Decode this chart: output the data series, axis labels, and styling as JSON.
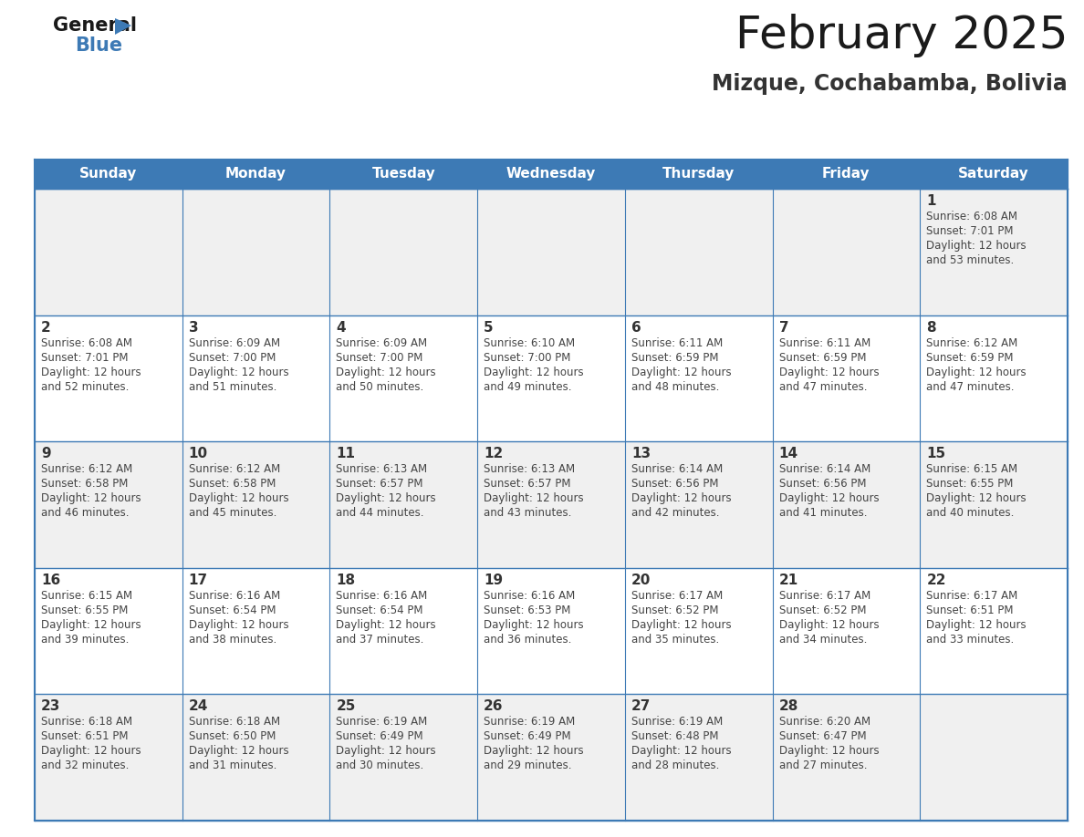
{
  "title": "February 2025",
  "subtitle": "Mizque, Cochabamba, Bolivia",
  "header_bg": "#3d7ab5",
  "header_text": "#ffffff",
  "row_bg_even": "#f0f0f0",
  "row_bg_odd": "#ffffff",
  "border_color": "#3d7ab5",
  "text_color": "#444444",
  "day_num_color": "#333333",
  "day_names": [
    "Sunday",
    "Monday",
    "Tuesday",
    "Wednesday",
    "Thursday",
    "Friday",
    "Saturday"
  ],
  "days": [
    {
      "day": 1,
      "col": 6,
      "row": 0,
      "sunrise": "6:08 AM",
      "sunset": "7:01 PM",
      "daylight": "12 hours and 53 minutes."
    },
    {
      "day": 2,
      "col": 0,
      "row": 1,
      "sunrise": "6:08 AM",
      "sunset": "7:01 PM",
      "daylight": "12 hours and 52 minutes."
    },
    {
      "day": 3,
      "col": 1,
      "row": 1,
      "sunrise": "6:09 AM",
      "sunset": "7:00 PM",
      "daylight": "12 hours and 51 minutes."
    },
    {
      "day": 4,
      "col": 2,
      "row": 1,
      "sunrise": "6:09 AM",
      "sunset": "7:00 PM",
      "daylight": "12 hours and 50 minutes."
    },
    {
      "day": 5,
      "col": 3,
      "row": 1,
      "sunrise": "6:10 AM",
      "sunset": "7:00 PM",
      "daylight": "12 hours and 49 minutes."
    },
    {
      "day": 6,
      "col": 4,
      "row": 1,
      "sunrise": "6:11 AM",
      "sunset": "6:59 PM",
      "daylight": "12 hours and 48 minutes."
    },
    {
      "day": 7,
      "col": 5,
      "row": 1,
      "sunrise": "6:11 AM",
      "sunset": "6:59 PM",
      "daylight": "12 hours and 47 minutes."
    },
    {
      "day": 8,
      "col": 6,
      "row": 1,
      "sunrise": "6:12 AM",
      "sunset": "6:59 PM",
      "daylight": "12 hours and 47 minutes."
    },
    {
      "day": 9,
      "col": 0,
      "row": 2,
      "sunrise": "6:12 AM",
      "sunset": "6:58 PM",
      "daylight": "12 hours and 46 minutes."
    },
    {
      "day": 10,
      "col": 1,
      "row": 2,
      "sunrise": "6:12 AM",
      "sunset": "6:58 PM",
      "daylight": "12 hours and 45 minutes."
    },
    {
      "day": 11,
      "col": 2,
      "row": 2,
      "sunrise": "6:13 AM",
      "sunset": "6:57 PM",
      "daylight": "12 hours and 44 minutes."
    },
    {
      "day": 12,
      "col": 3,
      "row": 2,
      "sunrise": "6:13 AM",
      "sunset": "6:57 PM",
      "daylight": "12 hours and 43 minutes."
    },
    {
      "day": 13,
      "col": 4,
      "row": 2,
      "sunrise": "6:14 AM",
      "sunset": "6:56 PM",
      "daylight": "12 hours and 42 minutes."
    },
    {
      "day": 14,
      "col": 5,
      "row": 2,
      "sunrise": "6:14 AM",
      "sunset": "6:56 PM",
      "daylight": "12 hours and 41 minutes."
    },
    {
      "day": 15,
      "col": 6,
      "row": 2,
      "sunrise": "6:15 AM",
      "sunset": "6:55 PM",
      "daylight": "12 hours and 40 minutes."
    },
    {
      "day": 16,
      "col": 0,
      "row": 3,
      "sunrise": "6:15 AM",
      "sunset": "6:55 PM",
      "daylight": "12 hours and 39 minutes."
    },
    {
      "day": 17,
      "col": 1,
      "row": 3,
      "sunrise": "6:16 AM",
      "sunset": "6:54 PM",
      "daylight": "12 hours and 38 minutes."
    },
    {
      "day": 18,
      "col": 2,
      "row": 3,
      "sunrise": "6:16 AM",
      "sunset": "6:54 PM",
      "daylight": "12 hours and 37 minutes."
    },
    {
      "day": 19,
      "col": 3,
      "row": 3,
      "sunrise": "6:16 AM",
      "sunset": "6:53 PM",
      "daylight": "12 hours and 36 minutes."
    },
    {
      "day": 20,
      "col": 4,
      "row": 3,
      "sunrise": "6:17 AM",
      "sunset": "6:52 PM",
      "daylight": "12 hours and 35 minutes."
    },
    {
      "day": 21,
      "col": 5,
      "row": 3,
      "sunrise": "6:17 AM",
      "sunset": "6:52 PM",
      "daylight": "12 hours and 34 minutes."
    },
    {
      "day": 22,
      "col": 6,
      "row": 3,
      "sunrise": "6:17 AM",
      "sunset": "6:51 PM",
      "daylight": "12 hours and 33 minutes."
    },
    {
      "day": 23,
      "col": 0,
      "row": 4,
      "sunrise": "6:18 AM",
      "sunset": "6:51 PM",
      "daylight": "12 hours and 32 minutes."
    },
    {
      "day": 24,
      "col": 1,
      "row": 4,
      "sunrise": "6:18 AM",
      "sunset": "6:50 PM",
      "daylight": "12 hours and 31 minutes."
    },
    {
      "day": 25,
      "col": 2,
      "row": 4,
      "sunrise": "6:19 AM",
      "sunset": "6:49 PM",
      "daylight": "12 hours and 30 minutes."
    },
    {
      "day": 26,
      "col": 3,
      "row": 4,
      "sunrise": "6:19 AM",
      "sunset": "6:49 PM",
      "daylight": "12 hours and 29 minutes."
    },
    {
      "day": 27,
      "col": 4,
      "row": 4,
      "sunrise": "6:19 AM",
      "sunset": "6:48 PM",
      "daylight": "12 hours and 28 minutes."
    },
    {
      "day": 28,
      "col": 5,
      "row": 4,
      "sunrise": "6:20 AM",
      "sunset": "6:47 PM",
      "daylight": "12 hours and 27 minutes."
    }
  ],
  "num_rows": 5,
  "num_cols": 7,
  "title_fontsize": 36,
  "subtitle_fontsize": 17,
  "header_fontsize": 11,
  "day_num_fontsize": 11,
  "cell_text_fontsize": 8.5,
  "logo_general_fontsize": 15,
  "logo_blue_fontsize": 15
}
